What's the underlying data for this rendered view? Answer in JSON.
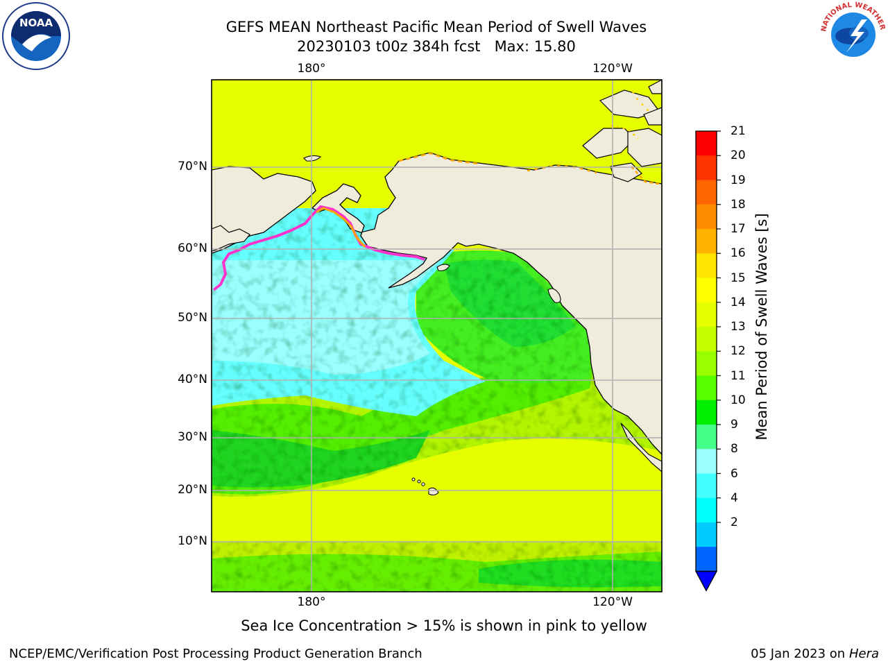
{
  "header": {
    "title_line1": "GEFS MEAN Northeast Pacific Mean Period of Swell Waves",
    "title_line2": "20230103 t00z 384h fcst   Max: 15.80"
  },
  "logos": {
    "left": {
      "icon": "noaa-logo",
      "text": "NOAA",
      "ring_text": "NATIONAL OCEANIC AND ATMOSPHERIC ADMINISTRATION · U.S. DEPARTMENT OF COMMERCE"
    },
    "right": {
      "icon": "nws-logo",
      "ring_text": "NATIONAL WEATHER SERVICE"
    }
  },
  "map": {
    "top_lon_labels": [
      "180°",
      "120°W"
    ],
    "bottom_lon_labels": [
      "180°",
      "120°W"
    ],
    "lat_labels": [
      "70°N",
      "60°N",
      "50°N",
      "40°N",
      "30°N",
      "20°N",
      "10°N"
    ],
    "colors": {
      "land": "#efecdc",
      "ice_edge": "#ff33cc",
      "ice_inner": "#ffa500"
    }
  },
  "colorbar": {
    "label": "Mean Period of Swell Waves [s]",
    "ticks": [
      "21",
      "20",
      "19",
      "18",
      "17",
      "16",
      "15",
      "14",
      "13",
      "12",
      "11",
      "10",
      "9",
      "8",
      "6",
      "4",
      "2"
    ],
    "colors_top_to_bottom": [
      "#ff0000",
      "#ff3300",
      "#ff6600",
      "#ff8c00",
      "#ffb300",
      "#ffe600",
      "#ffff00",
      "#e6ff00",
      "#c8ff00",
      "#99ff00",
      "#55ff00",
      "#00ee00",
      "#44ff88",
      "#99ffff",
      "#44ffff",
      "#00ffff",
      "#00ccff",
      "#0066ff"
    ],
    "extend_color": "#0000ff"
  },
  "caption": "Sea Ice Concentration > 15% is shown in pink to yellow",
  "footer": {
    "left": "NCEP/EMC/Verification Post Processing Product Generation Branch",
    "right_date": "05 Jan 2023 on",
    "right_machine": "Hera"
  }
}
